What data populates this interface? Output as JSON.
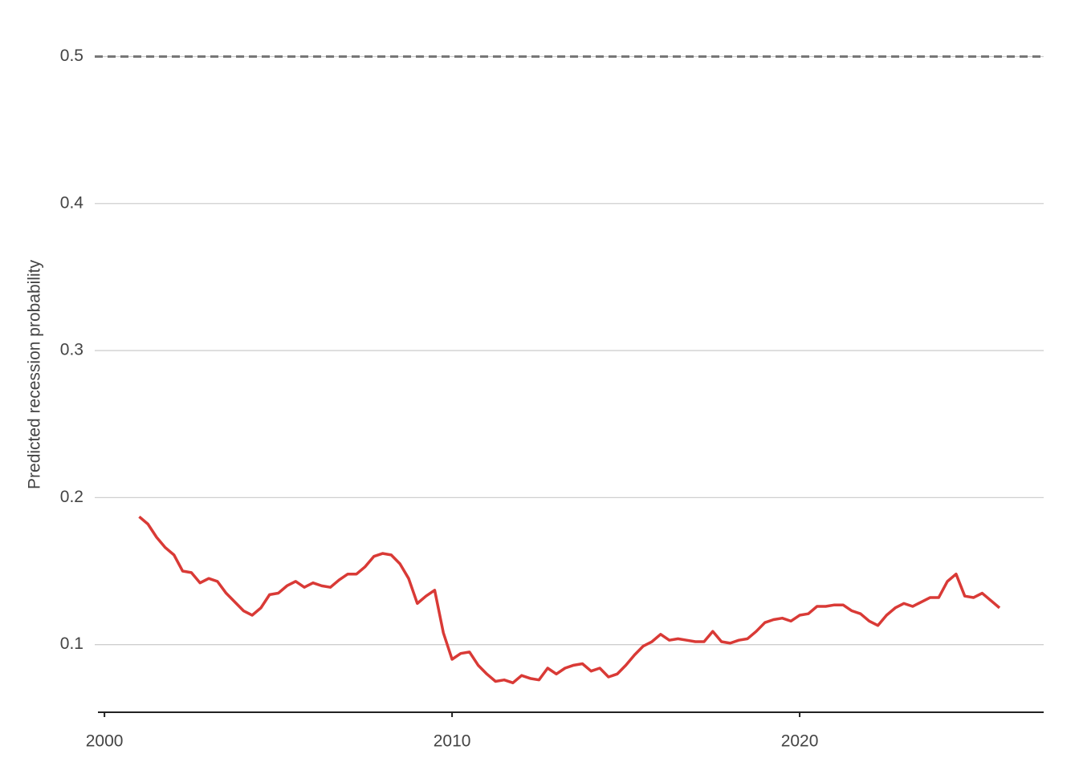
{
  "chart_data": {
    "type": "line",
    "y_label": "Predicted recession probability",
    "x": [
      2001,
      2001.25,
      2001.5,
      2001.75,
      2002,
      2002.25,
      2002.5,
      2002.75,
      2003,
      2003.25,
      2003.5,
      2003.75,
      2004,
      2004.25,
      2004.5,
      2004.75,
      2005,
      2005.25,
      2005.5,
      2005.75,
      2006,
      2006.25,
      2006.5,
      2006.75,
      2007,
      2007.25,
      2007.5,
      2007.75,
      2008,
      2008.25,
      2008.5,
      2008.75,
      2009,
      2009.25,
      2009.5,
      2009.75,
      2010,
      2010.25,
      2010.5,
      2010.75,
      2011,
      2011.25,
      2011.5,
      2011.75,
      2012,
      2012.25,
      2012.5,
      2012.75,
      2013,
      2013.25,
      2013.5,
      2013.75,
      2014,
      2014.25,
      2014.5,
      2014.75,
      2015,
      2015.25,
      2015.5,
      2015.75,
      2016,
      2016.25,
      2016.5,
      2016.75,
      2017,
      2017.25,
      2017.5,
      2017.75,
      2018,
      2018.25,
      2018.5,
      2018.75,
      2019,
      2019.25,
      2019.5,
      2019.75,
      2020,
      2020.25,
      2020.5,
      2020.75,
      2021,
      2021.25,
      2021.5,
      2021.75,
      2022,
      2022.25,
      2022.5,
      2022.75,
      2023,
      2023.25,
      2023.5,
      2023.75,
      2024,
      2024.25,
      2024.5,
      2024.75,
      2025,
      2025.25,
      2025.5,
      2025.75
    ],
    "series": [
      {
        "color": "#d93a36",
        "values": [
          0.187,
          0.182,
          0.173,
          0.166,
          0.161,
          0.15,
          0.149,
          0.142,
          0.145,
          0.143,
          0.135,
          0.129,
          0.123,
          0.12,
          0.125,
          0.134,
          0.135,
          0.14,
          0.143,
          0.139,
          0.142,
          0.14,
          0.139,
          0.144,
          0.148,
          0.148,
          0.153,
          0.16,
          0.162,
          0.161,
          0.155,
          0.145,
          0.128,
          0.133,
          0.137,
          0.108,
          0.09,
          0.094,
          0.095,
          0.086,
          0.08,
          0.075,
          0.076,
          0.074,
          0.079,
          0.077,
          0.076,
          0.084,
          0.08,
          0.084,
          0.086,
          0.087,
          0.082,
          0.084,
          0.078,
          0.08,
          0.086,
          0.093,
          0.099,
          0.102,
          0.107,
          0.103,
          0.104,
          0.103,
          0.102,
          0.102,
          0.109,
          0.102,
          0.101,
          0.103,
          0.104,
          0.109,
          0.115,
          0.117,
          0.118,
          0.116,
          0.12,
          0.121,
          0.126,
          0.126,
          0.127,
          0.127,
          0.123,
          0.121,
          0.116,
          0.113,
          0.12,
          0.125,
          0.128,
          0.126,
          0.129,
          0.132,
          0.132,
          0.143,
          0.148,
          0.133,
          0.132,
          0.135,
          0.13,
          0.125
        ]
      }
    ],
    "xlim": [
      1999.72,
      2027.02
    ],
    "xticks": [
      2000,
      2010,
      2020
    ],
    "ylim": [
      0.054,
      0.511
    ],
    "yticks": [
      0.1,
      0.2,
      0.3,
      0.4,
      0.5
    ],
    "reference_line": 0.5,
    "grid": true
  }
}
